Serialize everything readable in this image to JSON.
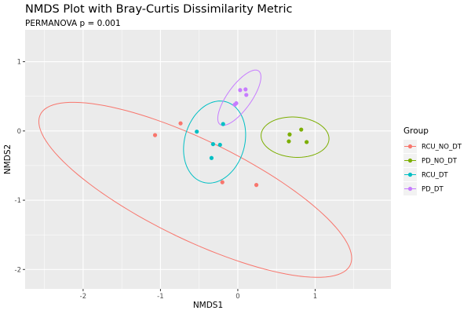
{
  "chart_data": {
    "type": "scatter",
    "title": "NMDS Plot with Bray-Curtis Dissimilarity Metric",
    "subtitle": "PERMANOVA p = 0.001",
    "xlabel": "NMDS1",
    "ylabel": "NMDS2",
    "xlim": [
      -2.75,
      1.98
    ],
    "ylim": [
      -2.28,
      1.46
    ],
    "x_ticks": [
      -2,
      -1,
      0,
      1
    ],
    "x_tick_labels": [
      "-2",
      "-1",
      "0",
      "1"
    ],
    "y_ticks": [
      1,
      0,
      -1,
      -2
    ],
    "y_tick_labels": [
      "1",
      "0",
      "-1",
      "-2"
    ],
    "grid": true,
    "legend": {
      "title": "Group",
      "position": "right"
    },
    "series": [
      {
        "name": "RCU_NO_DT",
        "color": "#F8766D",
        "points": [
          [
            -1.07,
            -0.06
          ],
          [
            -0.74,
            0.11
          ],
          [
            -0.2,
            -0.74
          ],
          [
            0.24,
            -0.78
          ]
        ],
        "ellipse": {
          "center": [
            -0.55,
            -0.85
          ],
          "semi_axes": [
            2.28,
            0.7
          ],
          "rotation_deg": -29
        }
      },
      {
        "name": "PD_NO_DT",
        "color": "#7CAE00",
        "points": [
          [
            0.82,
            0.02
          ],
          [
            0.67,
            -0.05
          ],
          [
            0.66,
            -0.15
          ],
          [
            0.89,
            -0.16
          ]
        ],
        "ellipse": {
          "center": [
            0.74,
            -0.09
          ],
          "semi_axes": [
            0.44,
            0.29
          ],
          "rotation_deg": -5
        }
      },
      {
        "name": "RCU_DT",
        "color": "#00BFC4",
        "points": [
          [
            -0.53,
            -0.01
          ],
          [
            -0.19,
            0.1
          ],
          [
            -0.32,
            -0.19
          ],
          [
            -0.23,
            -0.2
          ],
          [
            -0.34,
            -0.39
          ]
        ],
        "ellipse": {
          "center": [
            -0.3,
            -0.16
          ],
          "semi_axes": [
            0.39,
            0.6
          ],
          "rotation_deg": -12
        }
      },
      {
        "name": "PD_DT",
        "color": "#C77CFF",
        "points": [
          [
            0.03,
            0.59
          ],
          [
            0.1,
            0.6
          ],
          [
            0.11,
            0.52
          ],
          [
            -0.04,
            0.38
          ],
          [
            -0.02,
            0.4
          ]
        ],
        "ellipse": {
          "center": [
            0.02,
            0.48
          ],
          "semi_axes": [
            0.46,
            0.16
          ],
          "rotation_deg": 58
        }
      }
    ]
  }
}
